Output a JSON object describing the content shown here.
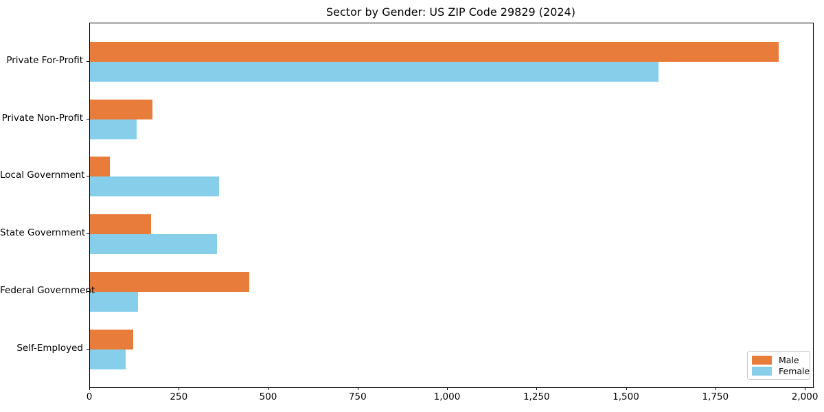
{
  "chart_data": {
    "type": "bar",
    "orientation": "horizontal",
    "title": "Sector by Gender: US ZIP Code 29829 (2024)",
    "categories": [
      "Private For-Profit",
      "Private Non-Profit",
      "Local Government",
      "State Government",
      "Federal Government",
      "Self-Employed"
    ],
    "series": [
      {
        "name": "Male",
        "color": "#E87D3B",
        "values": [
          1925,
          175,
          55,
          170,
          445,
          120
        ]
      },
      {
        "name": "Female",
        "color": "#87CEEB",
        "values": [
          1590,
          130,
          360,
          355,
          135,
          100
        ]
      }
    ],
    "xlabel": "",
    "ylabel": "",
    "xlim": [
      0,
      2021
    ],
    "x_ticks": [
      0,
      250,
      500,
      750,
      1000,
      1250,
      1500,
      1750,
      2000
    ],
    "x_tick_labels": [
      "0",
      "250",
      "500",
      "750",
      "1,000",
      "1,250",
      "1,500",
      "1,750",
      "2,000"
    ],
    "grid": false,
    "legend_position": "lower right",
    "frame_color": "#000000",
    "background_color": "#ffffff"
  }
}
